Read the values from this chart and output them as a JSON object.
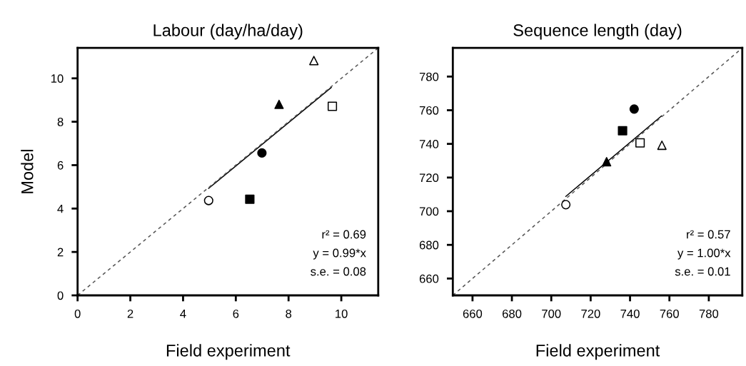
{
  "chart_data": [
    {
      "type": "scatter",
      "title": "Labour (day/ha/day)",
      "xlabel": "Field experiment",
      "ylabel": "Model",
      "xlim": [
        0,
        11.4
      ],
      "ylim": [
        0,
        11.4
      ],
      "xticks": [
        0,
        2,
        4,
        6,
        8,
        10
      ],
      "yticks": [
        0,
        2,
        4,
        6,
        8,
        10
      ],
      "grid": false,
      "legend": false,
      "series": [
        {
          "color": "#ffffff",
          "marker": "circle",
          "x": [
            4.97
          ],
          "values": [
            4.37
          ]
        },
        {
          "color": "#000000",
          "marker": "square",
          "x": [
            6.53
          ],
          "values": [
            4.43
          ]
        },
        {
          "color": "#000000",
          "marker": "circle",
          "x": [
            6.99
          ],
          "values": [
            6.56
          ]
        },
        {
          "color": "#000000",
          "marker": "triangle",
          "x": [
            7.64
          ],
          "values": [
            8.8
          ]
        },
        {
          "color": "#ffffff",
          "marker": "square",
          "x": [
            9.66
          ],
          "values": [
            8.71
          ]
        },
        {
          "color": "#ffffff",
          "marker": "triangle",
          "x": [
            8.96
          ],
          "values": [
            10.82
          ]
        },
        {
          "type": "line",
          "color": "#000000",
          "line_style": "solid",
          "x": [
            4.97,
            9.62
          ],
          "values": [
            4.93,
            9.58
          ]
        },
        {
          "type": "line",
          "color": "#555555",
          "line_style": "dashed",
          "x": [
            0,
            11.4
          ],
          "values": [
            0,
            11.4
          ]
        }
      ],
      "annotations": [
        "r² = 0.69",
        "y = 0.99*x",
        "s.e. = 0.08"
      ]
    },
    {
      "type": "scatter",
      "title": "Sequence length (day)",
      "xlabel": "Field experiment",
      "xlim": [
        650,
        797
      ],
      "ylim": [
        650,
        797
      ],
      "xticks": [
        660,
        680,
        700,
        720,
        740,
        760,
        780
      ],
      "yticks": [
        660,
        680,
        700,
        720,
        740,
        760,
        780
      ],
      "grid": false,
      "legend": false,
      "series": [
        {
          "color": "#ffffff",
          "marker": "circle",
          "x": [
            707.4
          ],
          "values": [
            703.9
          ]
        },
        {
          "color": "#000000",
          "marker": "triangle",
          "x": [
            728.1
          ],
          "values": [
            729.4
          ]
        },
        {
          "color": "#000000",
          "marker": "square",
          "x": [
            736.2
          ],
          "values": [
            747.8
          ]
        },
        {
          "color": "#000000",
          "marker": "circle",
          "x": [
            742.1
          ],
          "values": [
            760.7
          ]
        },
        {
          "color": "#ffffff",
          "marker": "square",
          "x": [
            745.1
          ],
          "values": [
            740.6
          ]
        },
        {
          "color": "#ffffff",
          "marker": "triangle",
          "x": [
            756.2
          ],
          "values": [
            739.2
          ]
        },
        {
          "type": "line",
          "color": "#000000",
          "line_style": "solid",
          "x": [
            707.4,
            756
          ],
          "values": [
            708.8,
            756.6
          ]
        },
        {
          "type": "line",
          "color": "#555555",
          "line_style": "dashed",
          "x": [
            650,
            797
          ],
          "values": [
            650,
            797
          ]
        }
      ],
      "annotations": [
        "r² = 0.57",
        "y = 1.00*x",
        "s.e. = 0.01"
      ]
    }
  ]
}
